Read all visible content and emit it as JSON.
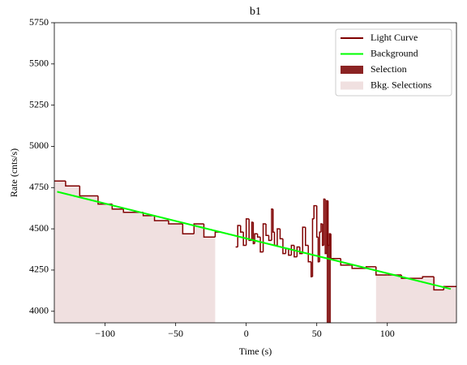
{
  "chart_data": {
    "type": "step",
    "title": "b1",
    "x_label": "Time (s)",
    "y_label": "Rate (cnts/s)",
    "xlim": [
      -136,
      149
    ],
    "ylim": [
      3930,
      5750
    ],
    "xticks": [
      {
        "value": -100,
        "label": "−100"
      },
      {
        "value": -50,
        "label": "−50"
      },
      0,
      50,
      100
    ],
    "yticks": [
      4000,
      4250,
      4500,
      4750,
      5000,
      5250,
      5500,
      5750
    ],
    "legend_position": "upper right",
    "series": [
      {
        "name": "Light Curve",
        "color": "#7f0000",
        "bins": [
          -136,
          -128,
          -118,
          -105,
          -95,
          -87,
          -73,
          -65,
          -55,
          -45,
          -37,
          -30,
          -22,
          -18,
          -7.5,
          -6,
          -4,
          -2,
          0,
          2,
          4,
          5,
          6,
          8,
          10,
          12,
          14,
          16,
          18,
          19,
          20,
          22,
          24,
          26,
          28,
          30,
          32,
          34,
          36,
          38,
          40,
          42,
          44,
          46,
          47,
          48,
          50,
          51,
          52,
          53,
          54,
          55,
          56,
          57,
          58,
          59,
          60,
          67,
          75,
          85,
          92,
          100,
          110,
          125,
          133,
          140,
          149
        ],
        "values": [
          4790,
          4760,
          4700,
          4650,
          4620,
          4600,
          4580,
          4550,
          4530,
          4470,
          4530,
          4450,
          4480,
          null,
          4390,
          4520,
          4480,
          4400,
          4560,
          4430,
          4540,
          4410,
          4470,
          4450,
          4360,
          4530,
          4460,
          4430,
          4620,
          4480,
          4400,
          4500,
          4440,
          4350,
          4380,
          4340,
          4400,
          4330,
          4390,
          4350,
          4510,
          4400,
          4300,
          4210,
          4560,
          4640,
          4450,
          4300,
          4480,
          4530,
          4400,
          4680,
          4350,
          4670,
          4400,
          4470,
          4320,
          4280,
          4260,
          4270,
          4220,
          4220,
          4200,
          4210,
          4130,
          4150
        ]
      },
      {
        "name": "Background",
        "color": "#00ff00",
        "x": [
          -134,
          145
        ],
        "values": [
          4725,
          4135
        ]
      },
      {
        "name": "Selection",
        "color": "#8b2323",
        "range": [
          57,
          60
        ]
      },
      {
        "name": "Bkg. Selections",
        "color": "#f0e0e0",
        "ranges": [
          [
            -136,
            -22
          ],
          [
            92,
            149
          ]
        ]
      }
    ]
  }
}
